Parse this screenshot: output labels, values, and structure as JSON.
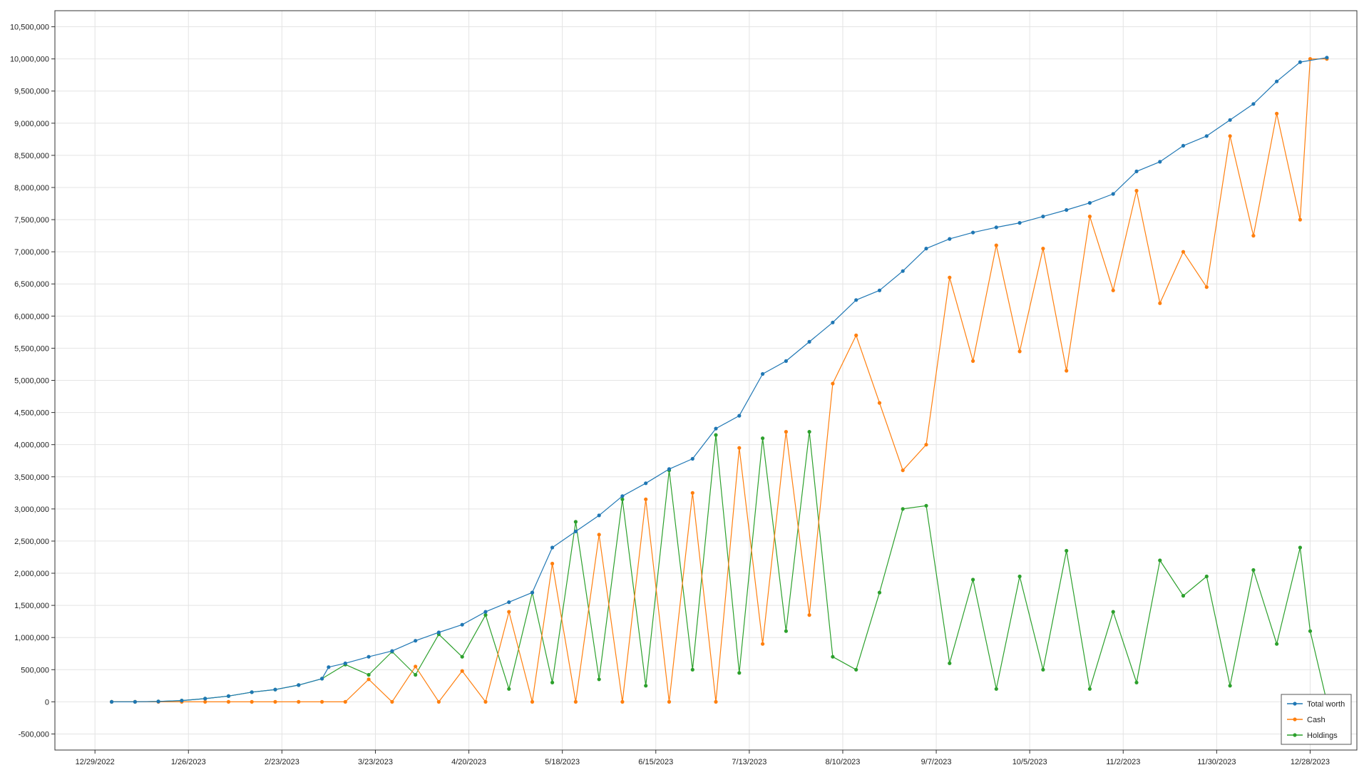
{
  "chart_data": {
    "type": "line",
    "title": "",
    "xlabel": "",
    "ylabel": "",
    "xlim": [
      "2022-12-17",
      "2024-01-11"
    ],
    "ylim": [
      -750000,
      10750000
    ],
    "x_ticks": [
      "12/29/2022",
      "1/26/2023",
      "2/23/2023",
      "3/23/2023",
      "4/20/2023",
      "5/18/2023",
      "6/15/2023",
      "7/13/2023",
      "8/10/2023",
      "9/7/2023",
      "10/5/2023",
      "11/2/2023",
      "11/30/2023",
      "12/28/2023"
    ],
    "y_ticks": [
      "-500,000",
      "0",
      "500,000",
      "1,000,000",
      "1,500,000",
      "2,000,000",
      "2,500,000",
      "3,000,000",
      "3,500,000",
      "4,000,000",
      "4,500,000",
      "5,000,000",
      "5,500,000",
      "6,000,000",
      "6,500,000",
      "7,000,000",
      "7,500,000",
      "8,000,000",
      "8,500,000",
      "9,000,000",
      "9,500,000",
      "10,000,000",
      "10,500,000"
    ],
    "grid": true,
    "legend_position": "bottom-right",
    "series": [
      {
        "name": "Total worth",
        "color": "#1f77b4",
        "points": [
          [
            "2023-01-03",
            0
          ],
          [
            "2023-01-10",
            0
          ],
          [
            "2023-01-17",
            5000
          ],
          [
            "2023-01-24",
            20000
          ],
          [
            "2023-01-31",
            50000
          ],
          [
            "2023-02-07",
            90000
          ],
          [
            "2023-02-14",
            150000
          ],
          [
            "2023-02-21",
            190000
          ],
          [
            "2023-02-28",
            260000
          ],
          [
            "2023-03-07",
            360000
          ],
          [
            "2023-03-09",
            540000
          ],
          [
            "2023-03-14",
            600000
          ],
          [
            "2023-03-21",
            700000
          ],
          [
            "2023-03-28",
            790000
          ],
          [
            "2023-04-04",
            950000
          ],
          [
            "2023-04-11",
            1080000
          ],
          [
            "2023-04-18",
            1200000
          ],
          [
            "2023-04-25",
            1400000
          ],
          [
            "2023-05-02",
            1550000
          ],
          [
            "2023-05-09",
            1700000
          ],
          [
            "2023-05-15",
            2400000
          ],
          [
            "2023-05-22",
            2650000
          ],
          [
            "2023-05-29",
            2900000
          ],
          [
            "2023-06-05",
            3200000
          ],
          [
            "2023-06-12",
            3400000
          ],
          [
            "2023-06-19",
            3620000
          ],
          [
            "2023-06-26",
            3780000
          ],
          [
            "2023-07-03",
            4250000
          ],
          [
            "2023-07-10",
            4450000
          ],
          [
            "2023-07-17",
            5100000
          ],
          [
            "2023-07-24",
            5300000
          ],
          [
            "2023-07-31",
            5600000
          ],
          [
            "2023-08-07",
            5900000
          ],
          [
            "2023-08-14",
            6250000
          ],
          [
            "2023-08-21",
            6400000
          ],
          [
            "2023-08-28",
            6700000
          ],
          [
            "2023-09-04",
            7050000
          ],
          [
            "2023-09-11",
            7200000
          ],
          [
            "2023-09-18",
            7300000
          ],
          [
            "2023-09-25",
            7380000
          ],
          [
            "2023-10-02",
            7450000
          ],
          [
            "2023-10-09",
            7550000
          ],
          [
            "2023-10-16",
            7650000
          ],
          [
            "2023-10-23",
            7760000
          ],
          [
            "2023-10-30",
            7900000
          ],
          [
            "2023-11-06",
            8250000
          ],
          [
            "2023-11-13",
            8400000
          ],
          [
            "2023-11-20",
            8650000
          ],
          [
            "2023-11-27",
            8800000
          ],
          [
            "2023-12-04",
            9050000
          ],
          [
            "2023-12-11",
            9300000
          ],
          [
            "2023-12-18",
            9650000
          ],
          [
            "2023-12-25",
            9950000
          ],
          [
            "2024-01-02",
            10020000
          ]
        ]
      },
      {
        "name": "Cash",
        "color": "#ff7f0e",
        "points": [
          [
            "2023-01-03",
            0
          ],
          [
            "2023-01-10",
            0
          ],
          [
            "2023-01-17",
            0
          ],
          [
            "2023-01-24",
            0
          ],
          [
            "2023-01-31",
            0
          ],
          [
            "2023-02-07",
            0
          ],
          [
            "2023-02-14",
            0
          ],
          [
            "2023-02-21",
            0
          ],
          [
            "2023-02-28",
            0
          ],
          [
            "2023-03-07",
            0
          ],
          [
            "2023-03-14",
            0
          ],
          [
            "2023-03-21",
            350000
          ],
          [
            "2023-03-28",
            0
          ],
          [
            "2023-04-04",
            550000
          ],
          [
            "2023-04-11",
            0
          ],
          [
            "2023-04-18",
            480000
          ],
          [
            "2023-04-25",
            0
          ],
          [
            "2023-05-02",
            1400000
          ],
          [
            "2023-05-09",
            0
          ],
          [
            "2023-05-15",
            2150000
          ],
          [
            "2023-05-22",
            0
          ],
          [
            "2023-05-29",
            2600000
          ],
          [
            "2023-06-05",
            0
          ],
          [
            "2023-06-12",
            3150000
          ],
          [
            "2023-06-19",
            0
          ],
          [
            "2023-06-26",
            3250000
          ],
          [
            "2023-07-03",
            0
          ],
          [
            "2023-07-10",
            3950000
          ],
          [
            "2023-07-17",
            900000
          ],
          [
            "2023-07-24",
            4200000
          ],
          [
            "2023-07-31",
            1350000
          ],
          [
            "2023-08-07",
            4950000
          ],
          [
            "2023-08-14",
            5700000
          ],
          [
            "2023-08-21",
            4650000
          ],
          [
            "2023-08-28",
            3600000
          ],
          [
            "2023-09-04",
            4000000
          ],
          [
            "2023-09-11",
            6600000
          ],
          [
            "2023-09-18",
            5300000
          ],
          [
            "2023-09-25",
            7100000
          ],
          [
            "2023-10-02",
            5450000
          ],
          [
            "2023-10-09",
            7050000
          ],
          [
            "2023-10-16",
            5150000
          ],
          [
            "2023-10-23",
            7550000
          ],
          [
            "2023-10-30",
            6400000
          ],
          [
            "2023-11-06",
            7950000
          ],
          [
            "2023-11-13",
            6200000
          ],
          [
            "2023-11-20",
            7000000
          ],
          [
            "2023-11-27",
            6450000
          ],
          [
            "2023-12-04",
            8800000
          ],
          [
            "2023-12-11",
            7250000
          ],
          [
            "2023-12-18",
            9150000
          ],
          [
            "2023-12-25",
            7500000
          ],
          [
            "2023-12-28",
            10000000
          ],
          [
            "2024-01-02",
            10000000
          ]
        ]
      },
      {
        "name": "Holdings",
        "color": "#2ca02c",
        "points": [
          [
            "2023-01-03",
            0
          ],
          [
            "2023-01-10",
            0
          ],
          [
            "2023-01-17",
            5000
          ],
          [
            "2023-01-24",
            20000
          ],
          [
            "2023-01-31",
            50000
          ],
          [
            "2023-02-07",
            90000
          ],
          [
            "2023-02-14",
            150000
          ],
          [
            "2023-02-21",
            190000
          ],
          [
            "2023-02-28",
            260000
          ],
          [
            "2023-03-07",
            360000
          ],
          [
            "2023-03-14",
            580000
          ],
          [
            "2023-03-21",
            420000
          ],
          [
            "2023-03-28",
            780000
          ],
          [
            "2023-04-04",
            420000
          ],
          [
            "2023-04-11",
            1050000
          ],
          [
            "2023-04-18",
            700000
          ],
          [
            "2023-04-25",
            1350000
          ],
          [
            "2023-05-02",
            200000
          ],
          [
            "2023-05-09",
            1700000
          ],
          [
            "2023-05-15",
            300000
          ],
          [
            "2023-05-22",
            2800000
          ],
          [
            "2023-05-29",
            350000
          ],
          [
            "2023-06-05",
            3150000
          ],
          [
            "2023-06-12",
            250000
          ],
          [
            "2023-06-19",
            3600000
          ],
          [
            "2023-06-26",
            500000
          ],
          [
            "2023-07-03",
            4150000
          ],
          [
            "2023-07-10",
            450000
          ],
          [
            "2023-07-17",
            4100000
          ],
          [
            "2023-07-24",
            1100000
          ],
          [
            "2023-07-31",
            4200000
          ],
          [
            "2023-08-07",
            700000
          ],
          [
            "2023-08-14",
            500000
          ],
          [
            "2023-08-21",
            1700000
          ],
          [
            "2023-08-28",
            3000000
          ],
          [
            "2023-09-04",
            3050000
          ],
          [
            "2023-09-11",
            600000
          ],
          [
            "2023-09-18",
            1900000
          ],
          [
            "2023-09-25",
            200000
          ],
          [
            "2023-10-02",
            1950000
          ],
          [
            "2023-10-09",
            500000
          ],
          [
            "2023-10-16",
            2350000
          ],
          [
            "2023-10-23",
            200000
          ],
          [
            "2023-10-30",
            1400000
          ],
          [
            "2023-11-06",
            300000
          ],
          [
            "2023-11-13",
            2200000
          ],
          [
            "2023-11-20",
            1650000
          ],
          [
            "2023-11-27",
            1950000
          ],
          [
            "2023-12-04",
            250000
          ],
          [
            "2023-12-11",
            2050000
          ],
          [
            "2023-12-18",
            900000
          ],
          [
            "2023-12-25",
            2400000
          ],
          [
            "2023-12-28",
            1100000
          ],
          [
            "2024-01-02",
            0
          ]
        ]
      }
    ]
  }
}
